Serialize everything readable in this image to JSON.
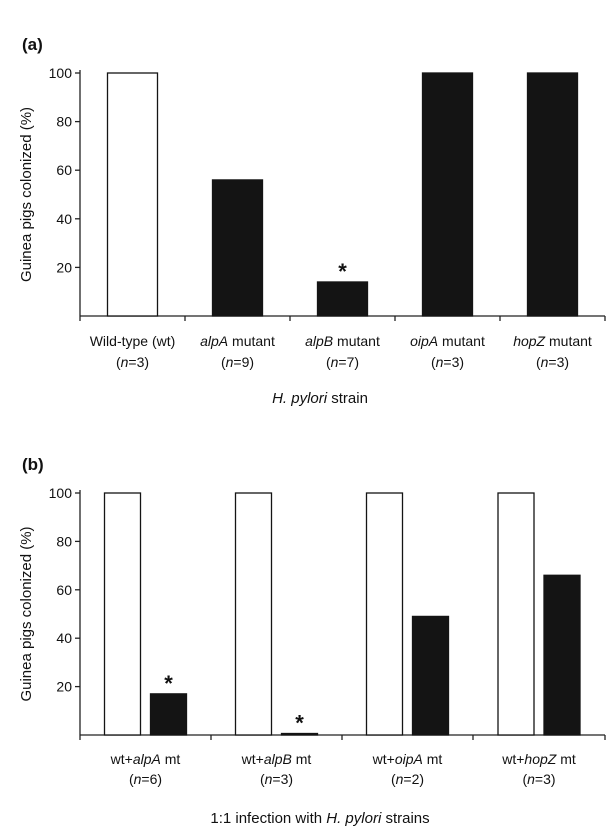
{
  "chart_data": [
    {
      "panel": "(a)",
      "type": "bar",
      "ylabel": "Guinea pigs colonized (%)",
      "xlabel": "H. pylori strain",
      "ylim": [
        0,
        100
      ],
      "yticks": [
        20,
        40,
        60,
        80,
        100
      ],
      "categories": [
        {
          "lines": [
            [
              {
                "t": "Wild-type (wt)",
                "i": false
              }
            ],
            [
              {
                "t": "(",
                "i": false
              },
              {
                "t": "n",
                "i": true
              },
              {
                "t": "=3)",
                "i": false
              }
            ]
          ]
        },
        {
          "lines": [
            [
              {
                "t": "alpA",
                "i": true
              },
              {
                "t": " mutant",
                "i": false
              }
            ],
            [
              {
                "t": "(",
                "i": false
              },
              {
                "t": "n",
                "i": true
              },
              {
                "t": "=9)",
                "i": false
              }
            ]
          ]
        },
        {
          "lines": [
            [
              {
                "t": "alpB",
                "i": true
              },
              {
                "t": " mutant",
                "i": false
              }
            ],
            [
              {
                "t": "(",
                "i": false
              },
              {
                "t": "n",
                "i": true
              },
              {
                "t": "=7)",
                "i": false
              }
            ]
          ]
        },
        {
          "lines": [
            [
              {
                "t": "oipA",
                "i": true
              },
              {
                "t": " mutant",
                "i": false
              }
            ],
            [
              {
                "t": "(",
                "i": false
              },
              {
                "t": "n",
                "i": true
              },
              {
                "t": "=3)",
                "i": false
              }
            ]
          ]
        },
        {
          "lines": [
            [
              {
                "t": "hopZ",
                "i": true
              },
              {
                "t": " mutant",
                "i": false
              }
            ],
            [
              {
                "t": "(",
                "i": false
              },
              {
                "t": "n",
                "i": true
              },
              {
                "t": "=3)",
                "i": false
              }
            ]
          ]
        }
      ],
      "xlabel_rich": [
        {
          "t": "H. pylori",
          "i": true
        },
        {
          "t": " strain",
          "i": false
        }
      ],
      "bars": [
        {
          "value": 100,
          "fill": "white",
          "star": false
        },
        {
          "value": 56,
          "fill": "black",
          "star": false
        },
        {
          "value": 14,
          "fill": "black",
          "star": true
        },
        {
          "value": 100,
          "fill": "black",
          "star": false
        },
        {
          "value": 100,
          "fill": "black",
          "star": false
        }
      ]
    },
    {
      "panel": "(b)",
      "type": "bar",
      "ylabel": "Guinea pigs colonized (%)",
      "xlabel": "1:1 infection with H. pylori strains",
      "ylim": [
        0,
        100
      ],
      "yticks": [
        20,
        40,
        60,
        80,
        100
      ],
      "categories": [
        {
          "lines": [
            [
              {
                "t": "wt+",
                "i": false
              },
              {
                "t": "alpA",
                "i": true
              },
              {
                "t": " mt",
                "i": false
              }
            ],
            [
              {
                "t": "(",
                "i": false
              },
              {
                "t": "n",
                "i": true
              },
              {
                "t": "=6)",
                "i": false
              }
            ]
          ]
        },
        {
          "lines": [
            [
              {
                "t": "wt+",
                "i": false
              },
              {
                "t": "alpB",
                "i": true
              },
              {
                "t": " mt",
                "i": false
              }
            ],
            [
              {
                "t": "(",
                "i": false
              },
              {
                "t": "n",
                "i": true
              },
              {
                "t": "=3)",
                "i": false
              }
            ]
          ]
        },
        {
          "lines": [
            [
              {
                "t": "wt+",
                "i": false
              },
              {
                "t": "oipA",
                "i": true
              },
              {
                "t": " mt",
                "i": false
              }
            ],
            [
              {
                "t": "(",
                "i": false
              },
              {
                "t": "n",
                "i": true
              },
              {
                "t": "=2)",
                "i": false
              }
            ]
          ]
        },
        {
          "lines": [
            [
              {
                "t": "wt+",
                "i": false
              },
              {
                "t": "hopZ",
                "i": true
              },
              {
                "t": " mt",
                "i": false
              }
            ],
            [
              {
                "t": "(",
                "i": false
              },
              {
                "t": "n",
                "i": true
              },
              {
                "t": "=3)",
                "i": false
              }
            ]
          ]
        }
      ],
      "xlabel_rich": [
        {
          "t": "1:1 infection with ",
          "i": false
        },
        {
          "t": "H. pylori",
          "i": true
        },
        {
          "t": " strains",
          "i": false
        }
      ],
      "series": [
        {
          "fill": "white",
          "values": [
            100,
            100,
            100,
            100
          ]
        },
        {
          "fill": "black",
          "values": [
            17,
            0,
            49,
            66
          ]
        }
      ],
      "stars": [
        [
          false,
          true
        ],
        [
          false,
          true
        ],
        [
          false,
          false
        ],
        [
          false,
          false
        ]
      ]
    }
  ]
}
